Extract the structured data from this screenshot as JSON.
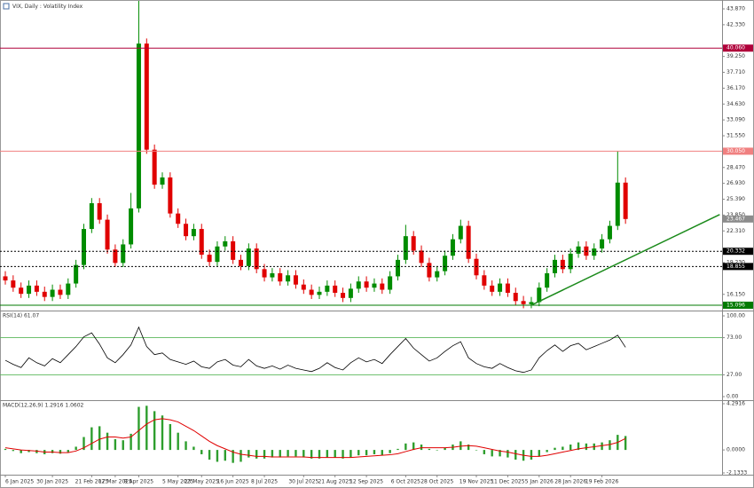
{
  "chart_data": [
    {
      "type": "candlestick",
      "title": "VIX, Daily : Volatility Index",
      "up_color": "#008c00",
      "down_color": "#e00000",
      "categories": [
        "6 Jan 2025",
        null,
        null,
        null,
        null,
        null,
        "30 Jan 2025",
        null,
        null,
        null,
        null,
        "21 Feb 2025",
        null,
        null,
        "17 Mar 2025",
        null,
        null,
        "8 Apr 2025",
        null,
        null,
        null,
        null,
        "5 May 2025",
        null,
        null,
        "23 May 2025",
        null,
        null,
        null,
        "16 Jun 2025",
        null,
        null,
        null,
        "8 Jul 2025",
        null,
        null,
        null,
        null,
        "30 Jul 2025",
        null,
        null,
        null,
        "21 Aug 2025",
        null,
        null,
        null,
        "12 Sep 2025",
        null,
        null,
        null,
        null,
        "6 Oct 2025",
        null,
        null,
        null,
        "28 Oct 2025",
        null,
        null,
        null,
        null,
        "19 Nov 2025",
        null,
        null,
        null,
        "11 Dec 2025",
        null,
        null,
        null,
        "5 Jan 2026",
        null,
        null,
        null,
        "28 Jan 2026",
        null,
        null,
        null,
        "19 Feb 2026",
        null,
        null,
        null
      ],
      "open": [
        17.9,
        17.5,
        16.8,
        16.2,
        17.0,
        16.4,
        15.9,
        16.6,
        16.1,
        17.2,
        19.0,
        22.5,
        25.0,
        23.4,
        20.5,
        19.2,
        21.0,
        24.5,
        40.5,
        30.2,
        26.8,
        27.5,
        24.0,
        23.0,
        21.8,
        22.5,
        20.0,
        19.3,
        20.8,
        21.3,
        19.5,
        18.9,
        20.6,
        18.6,
        17.8,
        18.2,
        17.4,
        18.0,
        17.1,
        16.6,
        16.1,
        16.4,
        17.0,
        16.3,
        15.8,
        16.7,
        17.4,
        16.8,
        17.2,
        16.6,
        17.9,
        19.5,
        21.8,
        20.4,
        19.2,
        17.8,
        18.4,
        19.9,
        21.5,
        22.8,
        19.6,
        18.0,
        17.0,
        16.4,
        17.2,
        16.3,
        15.5,
        15.2,
        15.4,
        16.8,
        18.2,
        19.5,
        18.6,
        20.1,
        20.8,
        19.9,
        20.6,
        21.5,
        22.8,
        27.0
      ],
      "high": [
        18.4,
        18.0,
        17.3,
        17.5,
        17.5,
        16.9,
        17.1,
        17.1,
        17.7,
        19.5,
        23.0,
        25.5,
        25.5,
        23.9,
        21.0,
        21.5,
        26.0,
        45.5,
        41.0,
        30.7,
        28.0,
        28.0,
        24.5,
        23.5,
        23.0,
        23.0,
        20.5,
        21.3,
        21.8,
        21.8,
        20.0,
        21.1,
        21.1,
        19.1,
        18.7,
        18.7,
        18.5,
        18.5,
        17.6,
        17.1,
        16.9,
        17.5,
        17.5,
        16.8,
        17.2,
        17.9,
        17.9,
        17.7,
        17.7,
        18.4,
        20.0,
        22.9,
        22.3,
        20.9,
        19.7,
        18.9,
        20.4,
        22.0,
        23.4,
        23.3,
        20.1,
        18.5,
        17.5,
        17.7,
        17.7,
        16.8,
        16.0,
        15.9,
        17.3,
        18.7,
        20.0,
        20.0,
        20.6,
        21.3,
        21.3,
        21.1,
        22.0,
        23.3,
        30.05,
        27.5
      ],
      "low": [
        17.1,
        16.4,
        15.8,
        15.8,
        16.0,
        15.5,
        15.5,
        15.7,
        15.7,
        16.8,
        18.6,
        22.1,
        23.0,
        20.1,
        18.8,
        18.8,
        20.6,
        24.1,
        29.8,
        26.4,
        26.4,
        23.6,
        22.6,
        21.4,
        21.4,
        19.6,
        18.9,
        18.9,
        20.4,
        19.1,
        18.5,
        18.5,
        18.2,
        17.4,
        17.4,
        17.0,
        17.0,
        16.7,
        16.2,
        15.7,
        15.7,
        16.0,
        15.9,
        15.4,
        15.4,
        16.3,
        16.4,
        16.4,
        16.2,
        16.2,
        17.5,
        19.1,
        20.0,
        18.8,
        17.4,
        17.4,
        18.0,
        19.5,
        21.1,
        19.2,
        17.6,
        16.6,
        16.0,
        16.0,
        15.9,
        15.1,
        14.8,
        14.8,
        15.0,
        16.4,
        17.8,
        18.2,
        18.2,
        19.7,
        19.5,
        19.5,
        20.2,
        21.1,
        22.4,
        23.0
      ],
      "close": [
        17.5,
        16.8,
        16.2,
        17.0,
        16.4,
        15.9,
        16.6,
        16.1,
        17.2,
        19.0,
        22.5,
        25.0,
        23.4,
        20.5,
        19.2,
        21.0,
        24.5,
        40.5,
        30.2,
        26.8,
        27.5,
        24.0,
        23.0,
        21.8,
        22.5,
        20.0,
        19.3,
        20.8,
        21.3,
        19.5,
        18.9,
        20.6,
        18.6,
        17.8,
        18.2,
        17.4,
        18.0,
        17.1,
        16.6,
        16.1,
        16.4,
        17.0,
        16.3,
        15.8,
        16.7,
        17.4,
        16.8,
        17.2,
        16.6,
        17.9,
        19.5,
        21.8,
        20.4,
        19.2,
        17.8,
        18.4,
        19.9,
        21.5,
        22.8,
        19.6,
        18.0,
        17.0,
        16.4,
        17.2,
        16.3,
        15.5,
        15.2,
        15.4,
        16.8,
        18.2,
        19.5,
        18.6,
        20.1,
        20.8,
        19.9,
        20.6,
        21.5,
        22.8,
        27.0,
        23.467
      ],
      "ylim": [
        14.75,
        44.56
      ],
      "yticks": [
        {
          "value": 43.87,
          "label": "43.870"
        },
        {
          "value": 42.33,
          "label": "42.330"
        },
        {
          "value": 39.25,
          "label": "39.250"
        },
        {
          "value": 37.71,
          "label": "37.710"
        },
        {
          "value": 36.17,
          "label": "36.170"
        },
        {
          "value": 34.63,
          "label": "34.630"
        },
        {
          "value": 33.09,
          "label": "33.090"
        },
        {
          "value": 31.55,
          "label": "31.550"
        },
        {
          "value": 28.47,
          "label": "28.470"
        },
        {
          "value": 26.93,
          "label": "26.930"
        },
        {
          "value": 25.39,
          "label": "25.390"
        },
        {
          "value": 23.85,
          "label": "23.850"
        },
        {
          "value": 22.31,
          "label": "22.310"
        },
        {
          "value": 19.23,
          "label": "19.230"
        },
        {
          "value": 16.15,
          "label": "16.150"
        }
      ],
      "levels": [
        {
          "value": 40.06,
          "label": "40.060",
          "color": "#b0003a",
          "style": "solid"
        },
        {
          "value": 30.05,
          "label": "30.050",
          "color": "#f08080",
          "style": "solid"
        },
        {
          "value": 20.332,
          "label": "20.332",
          "color": "#000000",
          "style": "dotted"
        },
        {
          "value": 18.855,
          "label": "18.855",
          "color": "#000000",
          "style": "dotted"
        },
        {
          "value": 15.096,
          "label": "15.096",
          "color": "#007a00",
          "style": "solid"
        }
      ],
      "trendline": {
        "from": [
          67,
          15.1
        ],
        "to": [
          91,
          23.9
        ],
        "color": "#1a8a1a"
      },
      "last_price_color": "#8c8c8c"
    },
    {
      "type": "line",
      "label": "RSI(14) 61.07",
      "color": "#000000",
      "values": [
        45,
        40,
        36,
        48,
        42,
        38,
        47,
        42,
        52,
        62,
        74,
        79,
        65,
        48,
        42,
        52,
        64,
        86,
        62,
        52,
        54,
        46,
        43,
        40,
        44,
        37,
        35,
        43,
        46,
        39,
        37,
        46,
        38,
        35,
        38,
        34,
        39,
        35,
        33,
        31,
        35,
        42,
        36,
        33,
        42,
        48,
        43,
        46,
        41,
        52,
        62,
        72,
        60,
        52,
        44,
        48,
        56,
        63,
        68,
        48,
        41,
        37,
        35,
        41,
        36,
        32,
        30,
        33,
        48,
        57,
        64,
        56,
        63,
        66,
        58,
        62,
        66,
        70,
        76,
        61.07
      ],
      "ylim": [
        0,
        100
      ],
      "yticks": [
        {
          "value": 100,
          "label": "100.00"
        },
        {
          "value": 73,
          "label": "73.00"
        },
        {
          "value": 27,
          "label": "27.00"
        },
        {
          "value": 0,
          "label": "0.00"
        }
      ],
      "levels": [
        73,
        27
      ],
      "level_color": "#5cb85c"
    },
    {
      "type": "bar",
      "label": "MACD(12,26,9) 1.2916 1.0602",
      "histogram": {
        "color": "#2e9e2e",
        "values": [
          0.1,
          -0.1,
          -0.3,
          -0.2,
          -0.3,
          -0.4,
          -0.3,
          -0.35,
          -0.2,
          0.3,
          1.2,
          2.1,
          2.2,
          1.6,
          1.0,
          0.9,
          1.5,
          4.0,
          4.1,
          3.6,
          3.2,
          2.4,
          1.6,
          0.8,
          0.3,
          -0.4,
          -0.9,
          -1.1,
          -1.0,
          -1.2,
          -1.1,
          -0.7,
          -0.8,
          -0.8,
          -0.7,
          -0.7,
          -0.6,
          -0.6,
          -0.7,
          -0.8,
          -0.8,
          -0.7,
          -0.7,
          -0.8,
          -0.7,
          -0.5,
          -0.5,
          -0.4,
          -0.5,
          -0.3,
          0.1,
          0.6,
          0.7,
          0.5,
          0.1,
          0.0,
          0.2,
          0.5,
          0.8,
          0.5,
          0.0,
          -0.4,
          -0.6,
          -0.6,
          -0.7,
          -0.9,
          -1.0,
          -0.9,
          -0.6,
          -0.2,
          0.2,
          0.3,
          0.5,
          0.7,
          0.6,
          0.6,
          0.7,
          0.9,
          1.4,
          1.2916
        ]
      },
      "signal": {
        "color": "#e00000",
        "values": [
          0.2,
          0.1,
          0.0,
          -0.05,
          -0.1,
          -0.2,
          -0.2,
          -0.25,
          -0.25,
          -0.1,
          0.2,
          0.6,
          1.0,
          1.2,
          1.2,
          1.1,
          1.2,
          1.8,
          2.4,
          2.8,
          2.9,
          2.8,
          2.6,
          2.2,
          1.8,
          1.3,
          0.8,
          0.4,
          0.1,
          -0.2,
          -0.4,
          -0.5,
          -0.6,
          -0.6,
          -0.65,
          -0.65,
          -0.65,
          -0.65,
          -0.65,
          -0.7,
          -0.7,
          -0.7,
          -0.7,
          -0.7,
          -0.7,
          -0.65,
          -0.6,
          -0.55,
          -0.5,
          -0.45,
          -0.35,
          -0.15,
          0.05,
          0.2,
          0.2,
          0.2,
          0.2,
          0.25,
          0.35,
          0.4,
          0.35,
          0.2,
          0.05,
          -0.1,
          -0.2,
          -0.35,
          -0.5,
          -0.6,
          -0.6,
          -0.5,
          -0.35,
          -0.2,
          -0.05,
          0.1,
          0.2,
          0.3,
          0.4,
          0.5,
          0.7,
          1.0602
        ]
      },
      "ylim": [
        -2.1333,
        4.2916
      ],
      "yticks": [
        {
          "value": 4.2916,
          "label": "4.2916"
        },
        {
          "value": 0,
          "label": "0.0000"
        },
        {
          "value": -2.1333,
          "label": "-2.1333"
        }
      ]
    }
  ]
}
